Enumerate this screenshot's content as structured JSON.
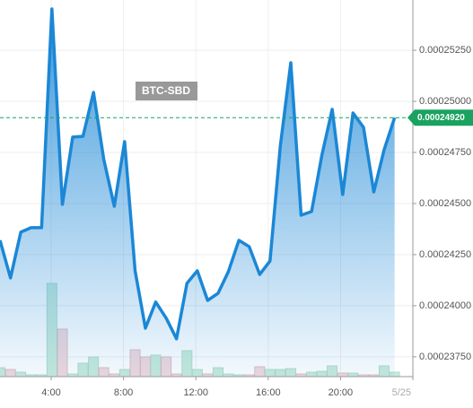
{
  "chart_data": {
    "type": "line",
    "title": "BTC-SBD",
    "x": [
      1.17,
      1.75,
      2.32,
      2.89,
      3.47,
      4.04,
      4.62,
      5.19,
      5.76,
      6.34,
      6.91,
      7.49,
      8.06,
      8.64,
      9.21,
      9.78,
      10.36,
      10.93,
      11.51,
      12.08,
      12.65,
      13.23,
      13.8,
      14.38,
      14.95,
      15.53,
      16.1,
      16.67,
      17.25,
      17.82,
      18.4,
      18.97,
      19.54,
      20.12,
      20.69,
      21.27,
      21.84,
      22.41,
      22.99
    ],
    "series": [
      {
        "name": "BTC-SBD",
        "color": "#1b87d6",
        "values": [
          0.0002432,
          0.00024136,
          0.0002436,
          0.00024382,
          0.00024382,
          0.00025452,
          0.00024496,
          0.00024825,
          0.00024829,
          0.00025044,
          0.00024715,
          0.00024487,
          0.00024803,
          0.00024171,
          0.0002389,
          0.00024018,
          0.00023939,
          0.00023838,
          0.0002411,
          0.00024171,
          0.00024026,
          0.00024061,
          0.00024167,
          0.0002432,
          0.00024289,
          0.00024153,
          0.00024219,
          0.00024781,
          0.00025189,
          0.00024443,
          0.00024461,
          0.00024737,
          0.00024961,
          0.00024544,
          0.00024943,
          0.00024873,
          0.00024557,
          0.00024763,
          0.0002492
        ]
      },
      {
        "name": "Volume",
        "axis": "y2",
        "up_color": "#c8eadb",
        "down_color": "#f0d8dc",
        "values": [
          10,
          8,
          5,
          2,
          2,
          104,
          53,
          3,
          15,
          22,
          10,
          3,
          8,
          30,
          22,
          24,
          22,
          3,
          29,
          8,
          3,
          10,
          3,
          2,
          2,
          11,
          8,
          8,
          9,
          3,
          5,
          6,
          12,
          4,
          4,
          2,
          2,
          12,
          5
        ]
      }
    ],
    "xlim": [
      1.17,
      24
    ],
    "xticks": [
      {
        "value": 4,
        "label": "4:00"
      },
      {
        "value": 8,
        "label": "8:00"
      },
      {
        "value": 12,
        "label": "12:00"
      },
      {
        "value": 16,
        "label": "16:00"
      },
      {
        "value": 20,
        "label": "20:00"
      },
      {
        "value": 24,
        "label": "5/25"
      }
    ],
    "ylim": [
      0.00023653,
      0.00025496
    ],
    "yticks": [
      {
        "value": 0.0002375,
        "label": "0.00023750"
      },
      {
        "value": 0.00024,
        "label": "0.00024000"
      },
      {
        "value": 0.0002425,
        "label": "0.00024250"
      },
      {
        "value": 0.000245,
        "label": "0.00024500"
      },
      {
        "value": 0.0002475,
        "label": "0.00024750"
      },
      {
        "value": 0.00025,
        "label": "0.00025000"
      },
      {
        "value": 0.0002525,
        "label": "0.00025250"
      }
    ],
    "y2lim": [
      0,
      420
    ],
    "last_price": {
      "value": 0.0002492,
      "label": "0.00024920",
      "color": "#1aa260"
    },
    "grid": true
  }
}
